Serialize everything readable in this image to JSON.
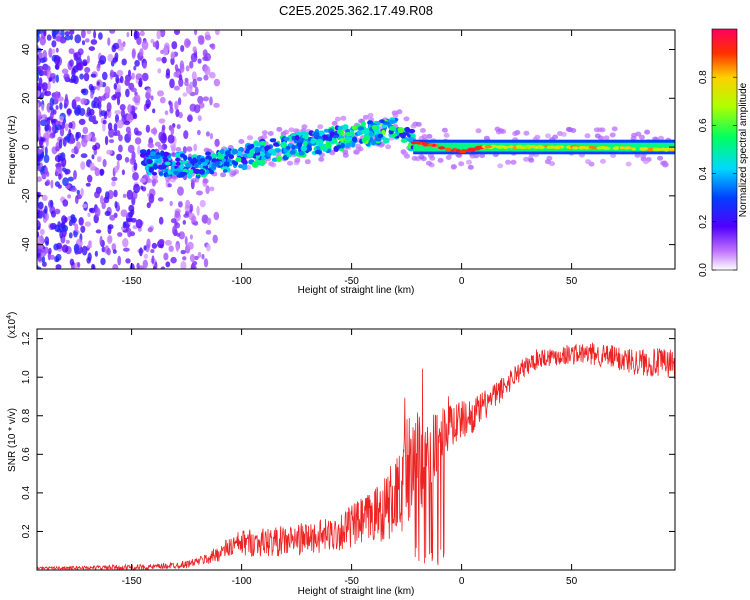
{
  "title": "C2E5.2025.362.17.49.R08",
  "colors": {
    "snr_line": "#ee2222",
    "frame": "#000000"
  },
  "chart_data": [
    {
      "type": "heatmap",
      "name": "spectrogram",
      "xlabel": "Height of straight line (km)",
      "ylabel": "Frequency (Hz)",
      "xlim": [
        -193,
        97
      ],
      "ylim": [
        -50,
        48
      ],
      "x_ticks": [
        -150,
        -100,
        -50,
        0,
        50
      ],
      "x_tick_labels": [
        "-150",
        "-100",
        "-50",
        "0",
        "50"
      ],
      "y_ticks": [
        -40,
        -20,
        0,
        20,
        40
      ],
      "y_tick_labels": [
        "-40",
        "-20",
        "0",
        "20",
        "40"
      ],
      "signal_trace": {
        "x": [
          -145,
          -120,
          -100,
          -80,
          -60,
          -40,
          -30,
          -22,
          -10,
          0,
          10,
          50,
          95
        ],
        "y": [
          -6,
          -8,
          -4,
          0,
          3,
          6,
          8,
          2,
          0,
          -2,
          0,
          0,
          -1
        ]
      },
      "colorbar": {
        "label": "Normalized spectral amplitude",
        "range": [
          0,
          1
        ],
        "ticks": [
          0.0,
          0.2,
          0.4,
          0.6,
          0.8
        ],
        "tick_labels": [
          "0.0",
          "0.2",
          "0.4",
          "0.6",
          "0.8"
        ]
      }
    },
    {
      "type": "line",
      "name": "snr",
      "xlabel": "Height of straight line (km)",
      "ylabel": "SNR (10 * v/v)",
      "multiplier": "(x10",
      "multiplier_exp": "4",
      "multiplier_close": ")",
      "xlim": [
        -193,
        97
      ],
      "ylim": [
        0,
        1.25
      ],
      "x_ticks": [
        -150,
        -100,
        -50,
        0,
        50
      ],
      "x_tick_labels": [
        "-150",
        "-100",
        "-50",
        "0",
        "50"
      ],
      "y_ticks": [
        0.2,
        0.4,
        0.6,
        0.8,
        1.0,
        1.2
      ],
      "y_tick_labels": [
        "0.2",
        "0.4",
        "0.6",
        "0.8",
        "1.0",
        "1.2"
      ],
      "envelope": {
        "x": [
          -193,
          -140,
          -125,
          -115,
          -105,
          -100,
          -80,
          -60,
          -45,
          -35,
          -28,
          -22,
          -18,
          -12,
          -8,
          0,
          5,
          15,
          25,
          35,
          50,
          60,
          70,
          80,
          97
        ],
        "y": [
          0.01,
          0.015,
          0.03,
          0.06,
          0.12,
          0.14,
          0.15,
          0.18,
          0.25,
          0.32,
          0.4,
          0.55,
          0.58,
          0.62,
          0.75,
          0.78,
          0.8,
          0.9,
          1.02,
          1.1,
          1.12,
          1.12,
          1.1,
          1.08,
          1.07
        ]
      },
      "spread": {
        "x": [
          -193,
          -120,
          -100,
          -60,
          -40,
          -20,
          -10,
          0,
          20,
          40,
          60,
          97
        ],
        "y": [
          0.005,
          0.02,
          0.07,
          0.09,
          0.14,
          0.28,
          0.18,
          0.1,
          0.06,
          0.05,
          0.06,
          0.08
        ]
      }
    }
  ]
}
